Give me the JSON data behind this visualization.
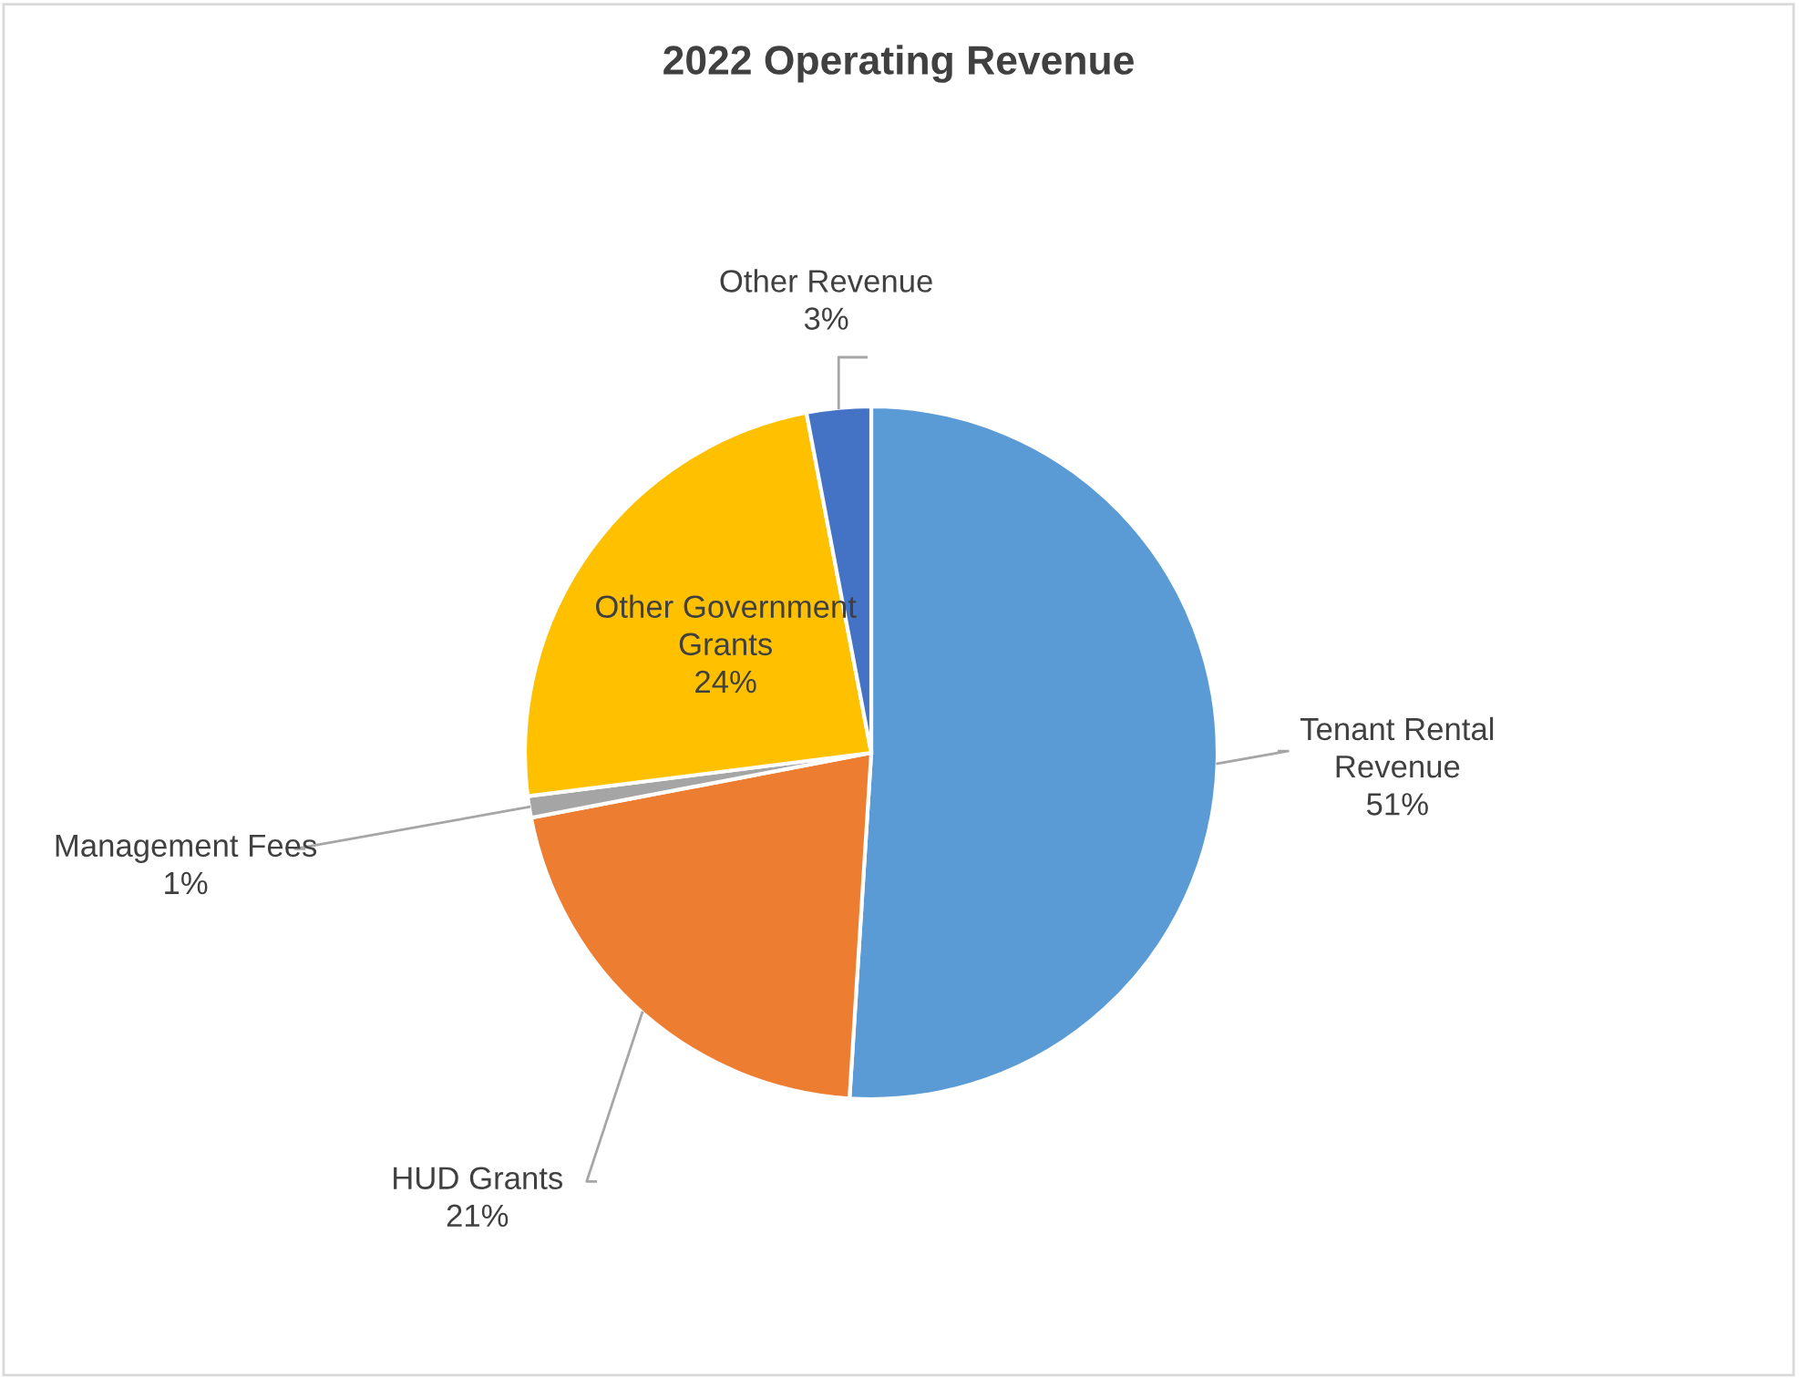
{
  "chart_data": {
    "type": "pie",
    "title": "2022 Operating Revenue",
    "categories": [
      "Tenant Rental\nRevenue",
      "HUD Grants",
      "Management Fees",
      "Other Government\nGrants",
      "Other Revenue"
    ],
    "values": [
      51,
      21,
      1,
      24,
      3
    ],
    "value_labels": [
      "51%",
      "21%",
      "1%",
      "24%",
      "3%"
    ],
    "colors": [
      "#5b9bd5",
      "#ed7d31",
      "#a5a5a5",
      "#ffc000",
      "#4472c4"
    ]
  }
}
